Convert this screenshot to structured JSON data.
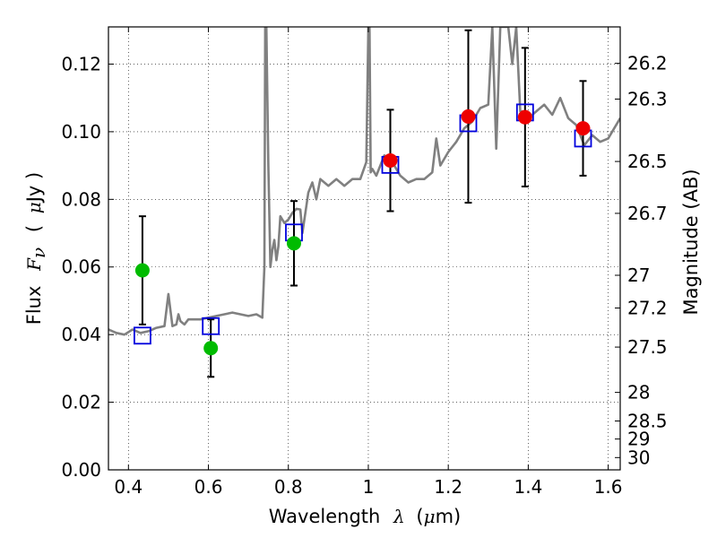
{
  "chart_data": {
    "type": "scatter",
    "xlabel_parts": {
      "text": "Wavelength",
      "symbol": "λ",
      "unit_open": "(",
      "unit_mu": "μ",
      "unit_close": "m)"
    },
    "ylabel_parts": {
      "text": "Flux",
      "symbol": "F",
      "subscript": "ν",
      "unit_open": "(",
      "unit_mu": "μ",
      "unit_close": "Jy )"
    },
    "y2label": "Magnitude (AB)",
    "xlim": [
      0.35,
      1.63
    ],
    "ylim": [
      0.0,
      0.131
    ],
    "grid": true,
    "xticks": [
      {
        "value": 0.4,
        "label": "0.4"
      },
      {
        "value": 0.6,
        "label": "0.6"
      },
      {
        "value": 0.8,
        "label": "0.8"
      },
      {
        "value": 1.0,
        "label": "1"
      },
      {
        "value": 1.2,
        "label": "1.2"
      },
      {
        "value": 1.4,
        "label": "1.4"
      },
      {
        "value": 1.6,
        "label": "1.6"
      }
    ],
    "yticks": [
      {
        "value": 0.0,
        "label": "0.00"
      },
      {
        "value": 0.02,
        "label": "0.02"
      },
      {
        "value": 0.04,
        "label": "0.04"
      },
      {
        "value": 0.06,
        "label": "0.06"
      },
      {
        "value": 0.08,
        "label": "0.08"
      },
      {
        "value": 0.1,
        "label": "0.10"
      },
      {
        "value": 0.12,
        "label": "0.12"
      }
    ],
    "y2ticks": [
      {
        "mag": 26.2,
        "label": "26.2"
      },
      {
        "mag": 26.3,
        "label": "26.3"
      },
      {
        "mag": 26.5,
        "label": "26.5"
      },
      {
        "mag": 26.7,
        "label": "26.7"
      },
      {
        "mag": 27.0,
        "label": "27"
      },
      {
        "mag": 27.2,
        "label": "27.2"
      },
      {
        "mag": 27.5,
        "label": "27.5"
      },
      {
        "mag": 28.0,
        "label": "28"
      },
      {
        "mag": 28.5,
        "label": "28.5"
      },
      {
        "mag": 29.0,
        "label": "29"
      },
      {
        "mag": 30.0,
        "label": "30"
      }
    ],
    "series": [
      {
        "name": "observed photometry (green)",
        "marker": "circle",
        "color": "#00bb00",
        "points": [
          {
            "x": 0.435,
            "y": 0.059,
            "yerr": 0.016
          },
          {
            "x": 0.606,
            "y": 0.036,
            "yerr": 0.0085
          },
          {
            "x": 0.814,
            "y": 0.067,
            "yerr": 0.0125
          }
        ]
      },
      {
        "name": "observed photometry (red)",
        "marker": "circle",
        "color": "#ee0000",
        "points": [
          {
            "x": 1.055,
            "y": 0.0915,
            "yerr": 0.015
          },
          {
            "x": 1.25,
            "y": 0.1045,
            "yerr": 0.0255
          },
          {
            "x": 1.392,
            "y": 0.1043,
            "yerr": 0.0205
          },
          {
            "x": 1.537,
            "y": 0.101,
            "yerr": 0.014
          }
        ]
      },
      {
        "name": "model photometry",
        "marker": "square",
        "color": "#0000dd",
        "points": [
          {
            "x": 0.435,
            "y": 0.0397
          },
          {
            "x": 0.606,
            "y": 0.0425
          },
          {
            "x": 0.814,
            "y": 0.0702
          },
          {
            "x": 1.055,
            "y": 0.0902
          },
          {
            "x": 1.25,
            "y": 0.1025
          },
          {
            "x": 1.392,
            "y": 0.1057
          },
          {
            "x": 1.537,
            "y": 0.098
          }
        ]
      },
      {
        "name": "model spectrum",
        "type": "line",
        "color": "#808080",
        "x": [
          0.35,
          0.37,
          0.39,
          0.41,
          0.43,
          0.45,
          0.47,
          0.49,
          0.5,
          0.51,
          0.52,
          0.525,
          0.53,
          0.535,
          0.54,
          0.55,
          0.56,
          0.58,
          0.6,
          0.62,
          0.64,
          0.66,
          0.68,
          0.7,
          0.72,
          0.735,
          0.74,
          0.742,
          0.745,
          0.75,
          0.755,
          0.76,
          0.765,
          0.77,
          0.775,
          0.78,
          0.79,
          0.8,
          0.81,
          0.82,
          0.83,
          0.835,
          0.84,
          0.845,
          0.85,
          0.86,
          0.87,
          0.88,
          0.9,
          0.92,
          0.94,
          0.96,
          0.98,
          0.995,
          1.0,
          1.003,
          1.006,
          1.01,
          1.02,
          1.04,
          1.06,
          1.08,
          1.1,
          1.12,
          1.14,
          1.16,
          1.17,
          1.18,
          1.2,
          1.22,
          1.24,
          1.26,
          1.28,
          1.3,
          1.31,
          1.32,
          1.33,
          1.34,
          1.35,
          1.36,
          1.37,
          1.38,
          1.39,
          1.4,
          1.42,
          1.44,
          1.46,
          1.48,
          1.5,
          1.52,
          1.54,
          1.56,
          1.58,
          1.6,
          1.63
        ],
        "y": [
          0.0415,
          0.0405,
          0.04,
          0.0415,
          0.0405,
          0.041,
          0.042,
          0.0425,
          0.052,
          0.0425,
          0.043,
          0.046,
          0.044,
          0.0435,
          0.043,
          0.0445,
          0.0445,
          0.0445,
          0.045,
          0.0455,
          0.046,
          0.0465,
          0.046,
          0.0455,
          0.046,
          0.045,
          0.06,
          0.131,
          0.131,
          0.09,
          0.06,
          0.065,
          0.068,
          0.062,
          0.066,
          0.075,
          0.073,
          0.074,
          0.076,
          0.0772,
          0.077,
          0.07,
          0.074,
          0.078,
          0.082,
          0.085,
          0.08,
          0.086,
          0.084,
          0.086,
          0.084,
          0.086,
          0.086,
          0.091,
          0.131,
          0.131,
          0.088,
          0.089,
          0.087,
          0.093,
          0.091,
          0.087,
          0.085,
          0.086,
          0.086,
          0.088,
          0.098,
          0.09,
          0.094,
          0.097,
          0.101,
          0.103,
          0.107,
          0.108,
          0.131,
          0.095,
          0.131,
          0.131,
          0.131,
          0.12,
          0.131,
          0.106,
          0.106,
          0.104,
          0.106,
          0.108,
          0.105,
          0.11,
          0.104,
          0.102,
          0.096,
          0.099,
          0.097,
          0.098,
          0.104
        ]
      }
    ]
  }
}
